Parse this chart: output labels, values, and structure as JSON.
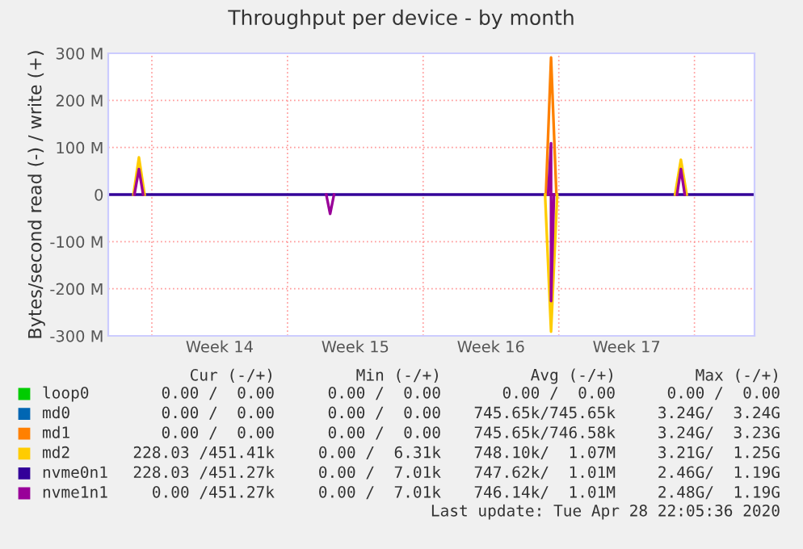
{
  "chart_data": {
    "type": "line",
    "title": "Throughput per device - by month",
    "ylabel": "Bytes/second read (-) / write (+)",
    "x": [
      "2020-03-26T19:12",
      "2020-03-28T02:24",
      "2020-03-28T08:00",
      "2020-03-28T13:12",
      "2020-04-07T00:00",
      "2020-04-07T04:48",
      "2020-04-07T09:36",
      "2020-04-18T10:48",
      "2020-04-18T14:24",
      "2020-04-18T18:00",
      "2020-04-25T02:24",
      "2020-04-25T07:12",
      "2020-04-25T12:00",
      "2020-04-29T00:00"
    ],
    "xlim": [
      "2020-03-26T18:00",
      "2020-04-29T02:24"
    ],
    "xticks": [
      {
        "value": "2020-03-29",
        "label": null
      },
      {
        "value": "2020-04-01T12:00",
        "label": "Week 14"
      },
      {
        "value": "2020-04-05",
        "label": null
      },
      {
        "value": "2020-04-08T12:00",
        "label": "Week 15"
      },
      {
        "value": "2020-04-12",
        "label": null
      },
      {
        "value": "2020-04-15T12:00",
        "label": "Week 16"
      },
      {
        "value": "2020-04-19",
        "label": null
      },
      {
        "value": "2020-04-22T12:00",
        "label": "Week 17"
      },
      {
        "value": "2020-04-26",
        "label": null
      }
    ],
    "ylim": [
      -300,
      300
    ],
    "yticks": [
      {
        "value": -300,
        "label": "-300 M"
      },
      {
        "value": -200,
        "label": "-200 M"
      },
      {
        "value": -100,
        "label": "-100 M"
      },
      0,
      {
        "value": 100,
        "label": "100 M"
      },
      {
        "value": 200,
        "label": "200 M"
      },
      {
        "value": 300,
        "label": "300 M"
      }
    ],
    "grid": true,
    "legend": "bottom",
    "series": [
      {
        "name": "loop0",
        "color": "#00cc00",
        "values": [
          null,
          null,
          null,
          null,
          null,
          null,
          null,
          null,
          null,
          null,
          null,
          null,
          null,
          null
        ]
      },
      {
        "name": "md0",
        "color": "#0066b3",
        "values": [
          null,
          null,
          null,
          null,
          null,
          null,
          null,
          null,
          null,
          null,
          null,
          null,
          null,
          null
        ]
      },
      {
        "name": "md1",
        "color": "#ff8000",
        "x": [
          "2020-04-18T08:00",
          "2020-04-18T14:24",
          "2020-04-18T21:00"
        ],
        "values": [
          0,
          291,
          0
        ]
      },
      {
        "name": "md2",
        "color": "#ffcc00",
        "x": [
          "2020-03-28T01:12",
          "2020-03-28T08:00",
          "2020-03-28T15:00",
          "2020-04-10T00:00",
          "2020-04-18T07:00",
          "2020-04-18T14:24",
          "2020-04-18T22:00",
          "2020-04-22T00:00",
          "2020-04-25T00:00",
          "2020-04-25T07:12",
          "2020-04-25T14:24"
        ],
        "values": [
          0,
          79,
          0,
          null,
          0,
          -291,
          0,
          null,
          0,
          74,
          0
        ]
      },
      {
        "name": "nvme0n1",
        "color": "#330099",
        "values": [
          0,
          0,
          0,
          0,
          0,
          0,
          0,
          0,
          0,
          0,
          0,
          0,
          0,
          0
        ]
      },
      {
        "name": "nvme1n1",
        "color": "#990099",
        "x": [
          "2020-03-28T02:24",
          "2020-03-28T08:00",
          "2020-03-28T13:12",
          "2020-04-02T00:00",
          "2020-04-07T00:00",
          "2020-04-07T04:48",
          "2020-04-07T09:36",
          "2020-04-12T00:00",
          "2020-04-18T10:48",
          "2020-04-18T14:24",
          "2020-04-18T14:24",
          "2020-04-18T18:00",
          "2020-04-22T00:00",
          "2020-04-25T02:24",
          "2020-04-25T07:12",
          "2020-04-25T12:00"
        ],
        "values": [
          0,
          54,
          0,
          null,
          0,
          -41,
          0,
          null,
          0,
          109,
          -226,
          0,
          null,
          0,
          54,
          0
        ]
      }
    ],
    "annotations": [
      "Cur (-/+)",
      "Min (-/+)",
      "Avg (-/+)",
      "Max (-/+)",
      "0.00 /  0.00",
      "0.00 /  0.00",
      "0.00 /  0.00",
      "0.00 /  0.00",
      "0.00 /  0.00",
      "0.00 /  0.00",
      "745.65k/745.65k",
      "3.24G/  3.24G",
      "0.00 /  0.00",
      "0.00 /  0.00",
      "745.65k/746.58k",
      "3.24G/  3.23G",
      "228.03 /451.41k",
      "0.00 /  6.31k",
      "748.10k/  1.07M",
      "3.21G/  1.25G",
      "228.03 /451.27k",
      "0.00 /  7.01k",
      "747.62k/  1.01M",
      "2.46G/  1.19G",
      "0.00 /451.27k",
      "0.00 /  7.01k",
      "746.14k/  1.01M",
      "2.48G/  1.19G",
      "Last update: Tue Apr 28 22:05:36 2020"
    ]
  }
}
